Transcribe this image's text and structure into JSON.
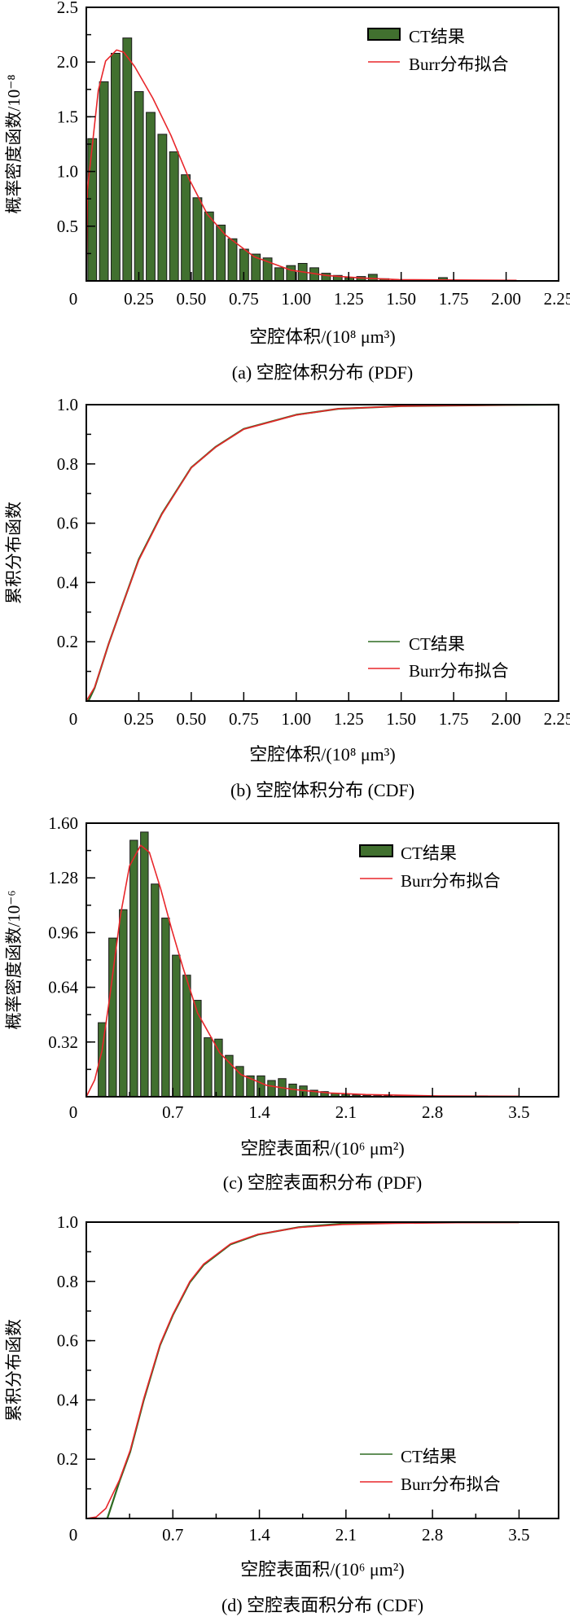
{
  "colors": {
    "bar_fill": "#41702f",
    "bar_stroke": "#1a1a1a",
    "ct_line": "#2e6b22",
    "fit_line": "#e8262a"
  },
  "legend": {
    "ct": "CT结果",
    "fit": "Burr分布拟合"
  },
  "chart_data": [
    {
      "type": "bar",
      "caption": "(a) 空腔体积分布 (PDF)",
      "xlabel": "空腔体积/(10⁸ μm³)",
      "ylabel": "概率密度函数/10⁻⁸",
      "xlim": [
        0,
        2.25
      ],
      "ylim": [
        0,
        2.5
      ],
      "xticks": [
        0.25,
        0.5,
        0.75,
        1.0,
        1.25,
        1.5,
        1.75,
        2.0,
        2.25
      ],
      "xtick_labels": [
        "0.25",
        "0.50",
        "0.75",
        "1.00",
        "1.25",
        "1.50",
        "1.75",
        "2.00",
        "2.25"
      ],
      "yticks": [
        0.5,
        1.0,
        1.5,
        2.0,
        2.5
      ],
      "ytick_labels": [
        "0.5",
        "1.0",
        "1.5",
        "2.0",
        "2.5"
      ],
      "origin_label": "0",
      "yminor": 0.25,
      "bin_start": 0.028,
      "bin_step": 0.0557,
      "bar_width": 0.042,
      "values": [
        1.3,
        1.82,
        2.08,
        2.22,
        1.73,
        1.54,
        1.34,
        1.18,
        0.97,
        0.76,
        0.63,
        0.51,
        0.385,
        0.29,
        0.245,
        0.21,
        0.12,
        0.14,
        0.16,
        0.12,
        0.07,
        0.05,
        0.03,
        0.04,
        0.06,
        0.02,
        0.01,
        0.01,
        0.005,
        0.005,
        0.03,
        0.005,
        0.003,
        0.003,
        0.003,
        0.003,
        0.003,
        0.003
      ],
      "fit_curve": {
        "x": [
          0,
          0.005,
          0.031,
          0.057,
          0.092,
          0.144,
          0.178,
          0.23,
          0.317,
          0.403,
          0.49,
          0.576,
          0.663,
          0.8,
          0.974,
          1.147,
          1.32,
          1.49,
          2.05
        ],
        "y": [
          0,
          0.83,
          1.28,
          1.74,
          2.01,
          2.11,
          2.09,
          1.96,
          1.67,
          1.33,
          0.93,
          0.61,
          0.42,
          0.22,
          0.098,
          0.049,
          0.025,
          0.012,
          0.005
        ]
      },
      "legend_position": "top-right"
    },
    {
      "type": "line",
      "caption": "(b) 空腔体积分布 (CDF)",
      "xlabel": "空腔体积/(10⁸ μm³)",
      "ylabel": "累积分布函数",
      "xlim": [
        0,
        2.25
      ],
      "ylim": [
        0,
        1.0
      ],
      "xticks": [
        0.25,
        0.5,
        0.75,
        1.0,
        1.25,
        1.5,
        1.75,
        2.0,
        2.25
      ],
      "xtick_labels": [
        "0.25",
        "0.50",
        "0.75",
        "1.00",
        "1.25",
        "1.50",
        "1.75",
        "2.00",
        "2.25"
      ],
      "yticks": [
        0.2,
        0.4,
        0.6,
        0.8,
        1.0
      ],
      "ytick_labels": [
        "0.2",
        "0.4",
        "0.6",
        "0.8",
        "1.0"
      ],
      "origin_label": "0",
      "yminor": 0.1,
      "ct_curve": {
        "x": [
          0.01,
          0.04,
          0.105,
          0.17,
          0.25,
          0.36,
          0.5,
          0.615,
          0.75,
          1.0,
          1.2,
          1.5,
          2.0,
          2.25
        ],
        "y": [
          0,
          0.045,
          0.19,
          0.32,
          0.478,
          0.632,
          0.788,
          0.857,
          0.918,
          0.966,
          0.986,
          0.995,
          0.999,
          1.0
        ]
      },
      "fit_curve": {
        "x": [
          0,
          0.04,
          0.105,
          0.17,
          0.25,
          0.36,
          0.5,
          0.615,
          0.75,
          1.0,
          1.2,
          1.5,
          2.0,
          2.25
        ],
        "y": [
          0,
          0.047,
          0.19,
          0.32,
          0.475,
          0.63,
          0.787,
          0.856,
          0.917,
          0.965,
          0.986,
          0.995,
          0.999,
          1.0
        ]
      },
      "legend_position": "bottom-right"
    },
    {
      "type": "bar",
      "caption": "(c) 空腔表面积分布 (PDF)",
      "xlabel": "空腔表面积/(10⁶ μm²)",
      "ylabel": "概率密度函数/10⁻⁶",
      "xlim": [
        0,
        3.82
      ],
      "ylim": [
        0,
        1.6
      ],
      "xticks": [
        0.7,
        1.4,
        2.1,
        2.8,
        3.5
      ],
      "xtick_labels": [
        "0.7",
        "1.4",
        "2.1",
        "2.8",
        "3.5"
      ],
      "yticks": [
        0.32,
        0.64,
        0.96,
        1.28,
        1.6
      ],
      "ytick_labels": [
        "0.32",
        "0.64",
        "0.96",
        "1.28",
        "1.60"
      ],
      "origin_label": "0",
      "yminor": 0.16,
      "bin_start": 0.127,
      "bin_step": 0.0857,
      "bar_width": 0.062,
      "values": [
        0.433,
        0.928,
        1.094,
        1.5,
        1.548,
        1.244,
        1.045,
        0.828,
        0.711,
        0.564,
        0.345,
        0.337,
        0.242,
        0.177,
        0.122,
        0.122,
        0.095,
        0.106,
        0.074,
        0.063,
        0.038,
        0.03,
        0.02,
        0.015,
        0.01,
        0.008,
        0.006,
        0.005,
        0.004,
        0.004,
        0.003,
        0.003,
        0.003,
        0.003,
        0.003,
        0.003,
        0.005,
        0.003,
        0.002,
        0.002
      ],
      "fit_curve": {
        "x": [
          0,
          0.068,
          0.127,
          0.187,
          0.276,
          0.35,
          0.44,
          0.51,
          0.6,
          0.69,
          0.78,
          0.9,
          1.08,
          1.25,
          1.46,
          1.67,
          1.97,
          2.26,
          2.85,
          3.5
        ],
        "y": [
          0,
          0.098,
          0.27,
          0.57,
          1.06,
          1.35,
          1.47,
          1.43,
          1.22,
          0.98,
          0.76,
          0.49,
          0.256,
          0.13,
          0.066,
          0.043,
          0.022,
          0.013,
          0.005,
          0.003
        ]
      },
      "legend_position": "top-right"
    },
    {
      "type": "line",
      "caption": "(d) 空腔表面积分布 (CDF)",
      "xlabel": "空腔表面积/(10⁶ μm²)",
      "ylabel": "累积分布函数",
      "xlim": [
        0,
        3.82
      ],
      "ylim": [
        0,
        1.0
      ],
      "xticks": [
        0.7,
        1.4,
        2.1,
        2.8,
        3.5
      ],
      "xtick_labels": [
        "0.7",
        "1.4",
        "2.1",
        "2.8",
        "3.5"
      ],
      "yticks": [
        0.2,
        0.4,
        0.6,
        0.8,
        1.0
      ],
      "ytick_labels": [
        "0.2",
        "0.4",
        "0.6",
        "0.8",
        "1.0"
      ],
      "origin_label": "0",
      "yminor": 0.1,
      "ct_curve": {
        "x": [
          0.17,
          0.268,
          0.355,
          0.465,
          0.597,
          0.7,
          0.838,
          0.948,
          1.167,
          1.39,
          1.72,
          2.07,
          2.5,
          3.0,
          3.5
        ],
        "y": [
          0,
          0.125,
          0.225,
          0.4,
          0.585,
          0.686,
          0.797,
          0.855,
          0.925,
          0.958,
          0.983,
          0.995,
          0.999,
          1.0,
          1.0
        ]
      },
      "fit_curve": {
        "x": [
          0,
          0.08,
          0.158,
          0.268,
          0.355,
          0.465,
          0.597,
          0.7,
          0.838,
          0.948,
          1.167,
          1.39,
          1.72,
          2.07,
          2.5,
          3.0,
          3.5
        ],
        "y": [
          0,
          0.005,
          0.034,
          0.13,
          0.23,
          0.405,
          0.588,
          0.689,
          0.8,
          0.858,
          0.927,
          0.959,
          0.982,
          0.992,
          0.996,
          0.998,
          0.999
        ]
      },
      "legend_position": "bottom-right"
    }
  ]
}
